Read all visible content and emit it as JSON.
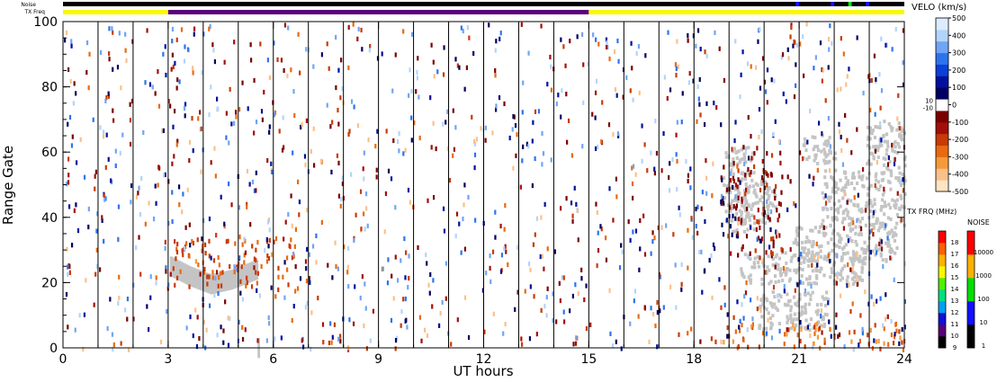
{
  "chart_data": {
    "type": "heatmap",
    "xlabel": "UT hours",
    "ylabel": "Range Gate",
    "xlim": [
      0,
      24
    ],
    "ylim": [
      0,
      100
    ],
    "x_ticks": [
      "0",
      "3",
      "6",
      "9",
      "12",
      "15",
      "18",
      "21",
      "24"
    ],
    "y_ticks": [
      "0",
      "20",
      "40",
      "60",
      "80",
      "100"
    ],
    "beam_boundaries_hours": [
      0,
      1,
      2,
      3,
      4,
      5,
      6,
      7,
      8,
      9,
      10,
      11,
      12,
      13,
      14,
      15,
      16,
      17,
      18,
      19,
      20,
      21,
      22,
      23,
      24
    ],
    "noise_strip": {
      "label": "Noise",
      "segments": [
        {
          "start": 0,
          "end": 24,
          "level": "1"
        },
        {
          "start": 20.9,
          "end": 21.0,
          "level": "10"
        },
        {
          "start": 21.9,
          "end": 22.0,
          "level": "10"
        },
        {
          "start": 22.4,
          "end": 22.5,
          "level": "100"
        },
        {
          "start": 22.9,
          "end": 23.0,
          "level": "10"
        }
      ]
    },
    "txfreq_strip": {
      "label": "TX Freq",
      "segments": [
        {
          "start": 0,
          "end": 3,
          "mhz": 15
        },
        {
          "start": 3,
          "end": 15,
          "mhz": 10
        },
        {
          "start": 15,
          "end": 24,
          "mhz": 15
        }
      ]
    },
    "velocity_scale": {
      "title": "VELO (km/s)",
      "ticks": [
        "500",
        "400",
        "300",
        "200",
        "100",
        "0",
        "-100",
        "-200",
        "-300",
        "-400",
        "-500"
      ],
      "near_zero_labels": [
        "10",
        "-10"
      ],
      "range": [
        -500,
        500
      ],
      "colors": [
        "#fde4c4",
        "#fbc08a",
        "#f59a3a",
        "#e86a10",
        "#c83a06",
        "#a01008",
        "#7a0000",
        "#ffffff",
        "#000060",
        "#00109c",
        "#0c3ed8",
        "#2c74ee",
        "#70a4f4",
        "#b2d4fa",
        "#dcecfe"
      ]
    },
    "txfreq_scale": {
      "title": "TX FRQ (MHz)",
      "ticks": [
        "9",
        "10",
        "11",
        "12",
        "13",
        "14",
        "15",
        "16",
        "17",
        "18"
      ],
      "colors": [
        "#000000",
        "#5a007a",
        "#1010d8",
        "#00a0f0",
        "#00e080",
        "#50f000",
        "#f8f800",
        "#ffb000",
        "#ff6000",
        "#ff0000"
      ]
    },
    "noise_scale": {
      "title": "NOISE",
      "ticks": [
        "1",
        "10",
        "100",
        "1000",
        "10000"
      ],
      "colors": [
        "#000000",
        "#1010ff",
        "#00e000",
        "#ffb000",
        "#ff0000"
      ]
    },
    "ground_scatter_color": "#c4c4c4",
    "ground_scatter_regions": [
      {
        "x": [
          3.05,
          5.55
        ],
        "y_start": [
          21,
          19
        ],
        "y_end": [
          27,
          26
        ],
        "wave": [
          [
            3.05,
            25
          ],
          [
            3.6,
            22
          ],
          [
            4.2,
            19.5
          ],
          [
            4.8,
            21
          ],
          [
            5.5,
            24
          ]
        ]
      },
      {
        "x": [
          18.8,
          19.7
        ],
        "y": [
          36,
          62
        ]
      },
      {
        "x": [
          19.2,
          20.3
        ],
        "y": [
          38,
          52
        ]
      },
      {
        "x": [
          19.3,
          22.9
        ],
        "y": [
          20,
          30
        ]
      },
      {
        "x": [
          19.8,
          21.8
        ],
        "y": [
          6,
          18
        ]
      },
      {
        "x": [
          20.8,
          23.8
        ],
        "y": [
          27,
          38
        ]
      },
      {
        "x": [
          21.0,
          22.0
        ],
        "y": [
          57,
          66
        ]
      },
      {
        "x": [
          21.6,
          24.0
        ],
        "y": [
          38,
          55
        ]
      },
      {
        "x": [
          22.9,
          24.0
        ],
        "y": [
          55,
          70
        ]
      }
    ],
    "coherent_scatter": [
      {
        "x": [
          18.7,
          19.3
        ],
        "y": [
          33,
          55
        ],
        "velocity": 40
      },
      {
        "x": [
          19.0,
          20.5
        ],
        "y": [
          28,
          62
        ],
        "velocity": -120
      },
      {
        "x": [
          18.8,
          24.0
        ],
        "y": [
          0,
          8
        ],
        "velocity": -300
      },
      {
        "x": [
          3.1,
          6.7
        ],
        "y": [
          18,
          34
        ],
        "velocity": -250
      }
    ]
  }
}
